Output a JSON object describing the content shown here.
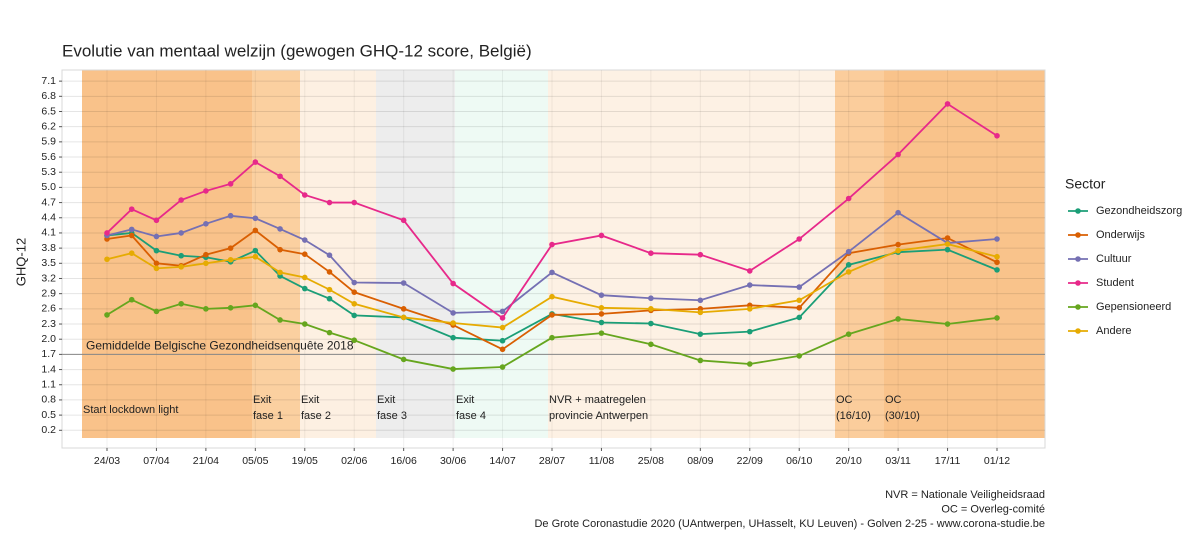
{
  "chart_data": {
    "type": "line",
    "title": "Evolutie van mentaal welzijn (gewogen GHQ-12 score, België)",
    "y_label": "GHQ-12",
    "categories": [
      "24/03",
      null,
      "07/04",
      null,
      "21/04",
      null,
      "05/05",
      null,
      "19/05",
      null,
      "02/06",
      "16/06",
      "30/06",
      "14/07",
      "28/07",
      "11/08",
      "25/08",
      "08/09",
      "22/09",
      "06/10",
      "20/10",
      "03/11",
      "17/11",
      "01/12"
    ],
    "series": [
      {
        "name": "Gezondheidszorg",
        "color": "#1b9e77",
        "values": [
          4.05,
          4.1,
          3.75,
          3.65,
          3.62,
          3.53,
          3.75,
          3.25,
          3.0,
          2.8,
          2.47,
          2.43,
          2.03,
          1.97,
          2.5,
          2.33,
          2.31,
          2.1,
          2.15,
          2.43,
          3.47,
          3.72,
          3.77,
          3.37
        ]
      },
      {
        "name": "Onderwijs",
        "color": "#d95f02",
        "values": [
          3.98,
          4.05,
          3.5,
          3.45,
          3.67,
          3.8,
          4.15,
          3.77,
          3.68,
          3.33,
          2.93,
          2.6,
          2.28,
          1.8,
          2.48,
          2.5,
          2.57,
          2.6,
          2.67,
          2.62,
          3.7,
          3.87,
          4.0,
          3.52
        ]
      },
      {
        "name": "Cultuur",
        "color": "#7570b3",
        "values": [
          4.05,
          4.17,
          4.03,
          4.1,
          4.28,
          4.44,
          4.39,
          4.18,
          3.96,
          3.66,
          3.12,
          3.11,
          2.52,
          2.55,
          3.32,
          2.87,
          2.81,
          2.77,
          3.07,
          3.03,
          3.73,
          4.5,
          3.9,
          3.98
        ]
      },
      {
        "name": "Student",
        "color": "#e7298a",
        "values": [
          4.1,
          4.57,
          4.35,
          4.75,
          4.93,
          5.07,
          5.5,
          5.22,
          4.85,
          4.7,
          4.7,
          4.35,
          3.1,
          2.42,
          3.87,
          4.05,
          3.7,
          3.67,
          3.35,
          3.98,
          4.78,
          5.65,
          6.65,
          6.02
        ]
      },
      {
        "name": "Gepensioneerd",
        "color": "#66a61e",
        "values": [
          2.48,
          2.78,
          2.55,
          2.7,
          2.6,
          2.62,
          2.67,
          2.38,
          2.3,
          2.13,
          1.98,
          1.6,
          1.41,
          1.45,
          2.03,
          2.12,
          1.9,
          1.58,
          1.51,
          1.67,
          2.1,
          2.4,
          2.3,
          2.42
        ]
      },
      {
        "name": "Andere",
        "color": "#e6ab02",
        "values": [
          3.58,
          3.7,
          3.4,
          3.43,
          3.5,
          3.57,
          3.63,
          3.32,
          3.22,
          2.98,
          2.7,
          2.43,
          2.32,
          2.23,
          2.84,
          2.62,
          2.6,
          2.53,
          2.6,
          2.77,
          3.33,
          3.75,
          3.88,
          3.63
        ]
      }
    ],
    "ylim": [
      -0.15,
      7.32
    ],
    "yticks": [
      0.2,
      0.5,
      0.8,
      1.1,
      1.4,
      1.7,
      {
        "value": 2,
        "label": "2.0"
      },
      2.3,
      2.6,
      2.9,
      3.2,
      3.5,
      3.8,
      4.1,
      4.4,
      4.7,
      {
        "value": 5,
        "label": "5.0"
      },
      5.3,
      5.6,
      5.9,
      6.2,
      6.5,
      6.8,
      7.1
    ],
    "grid": true,
    "legend_title": "Sector",
    "legend_position": "right",
    "reference_line": {
      "value": 1.7,
      "label": "Gemiddelde Belgische Gezondheidsenquête 2018"
    },
    "periods": [
      {
        "label": [
          "Start lockdown light"
        ],
        "color": "#f9c28a"
      },
      {
        "label": [
          "Exit",
          "fase 1"
        ],
        "color": "#fbd0a0"
      },
      {
        "label": [
          "Exit",
          "fase 2"
        ],
        "color": "#fdf0e2"
      },
      {
        "label": [
          "Exit",
          "fase 3"
        ],
        "color": "#ededed"
      },
      {
        "label": [
          "Exit",
          "fase 4"
        ],
        "color": "#eefaf4"
      },
      {
        "label": [
          "NVR + maatregelen",
          "provincie Antwerpen"
        ],
        "color": "#fdf1e4"
      },
      {
        "label": [
          "OC",
          "(16/10)"
        ],
        "color": "#fbcd9c"
      },
      {
        "label": [
          "OC",
          "(30/10)"
        ],
        "color": "#f9c38b"
      }
    ],
    "notes": [
      "NVR = Nationale Veiligheidsraad",
      "OC = Overleg-comité",
      "De Grote Coronastudie 2020  (UAntwerpen, UHasselt, KU Leuven) - Golven 2-25 - www.corona-studie.be"
    ]
  }
}
